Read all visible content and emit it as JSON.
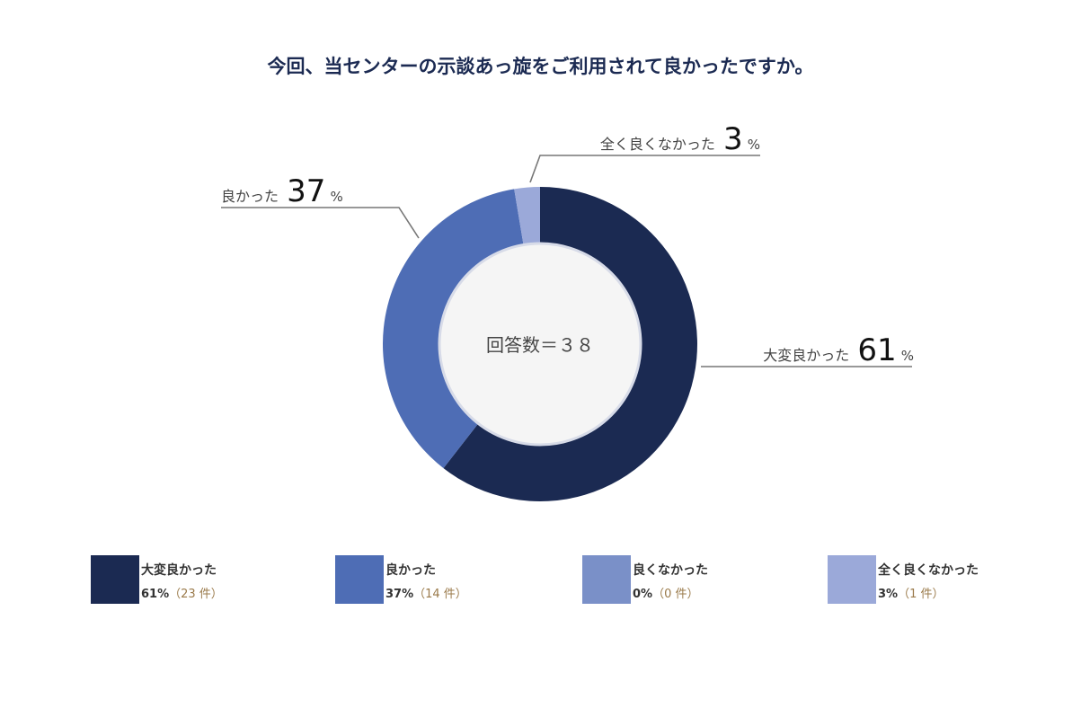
{
  "chart_data": {
    "type": "pie",
    "donut": true,
    "title": "今回、当センターの示談あっ旋をご利用されて良かったですか。",
    "center_label": "回答数＝３８",
    "categories": [
      "大変良かった",
      "良かった",
      "良くなかった",
      "全く良くなかった"
    ],
    "values": [
      23,
      14,
      0,
      1
    ],
    "percent_labels": [
      "61%",
      "37%",
      "0%",
      "3%"
    ],
    "count_labels": [
      "（23 件）",
      "（14 件）",
      "（0 件）",
      "（1 件）"
    ],
    "callouts": [
      {
        "category": "大変良かった",
        "text": "大変良かった",
        "number": "61",
        "unit": "%"
      },
      {
        "category": "良かった",
        "text": "良かった",
        "number": "37",
        "unit": "%"
      },
      {
        "category": "全く良くなかった",
        "text": "全く良くなかった",
        "number": "3",
        "unit": "%"
      }
    ],
    "colors": [
      "#1b2a52",
      "#4e6db5",
      "#7a90c8",
      "#9ba9d9"
    ],
    "legend_position": "bottom"
  }
}
